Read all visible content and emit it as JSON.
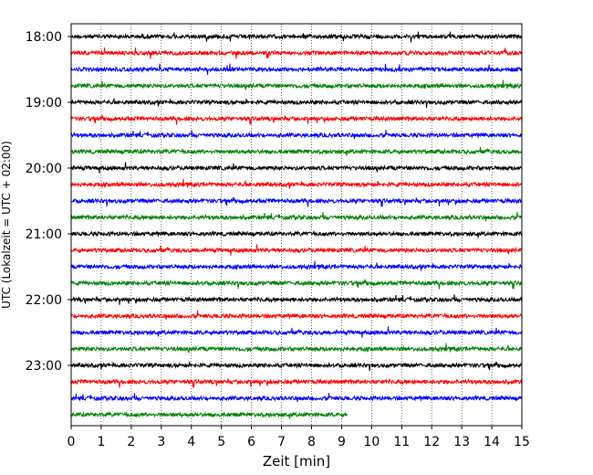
{
  "chart_data": {
    "type": "line",
    "xlabel": "Zeit  [min]",
    "ylabel": "UTC (Lokalzeit = UTC + 02:00)",
    "xlim": [
      0,
      15
    ],
    "x_ticks": [
      "0",
      "1",
      "2",
      "3",
      "4",
      "5",
      "6",
      "7",
      "8",
      "9",
      "10",
      "11",
      "12",
      "13",
      "14",
      "15"
    ],
    "y_ticks": [
      "18:00",
      "19:00",
      "20:00",
      "21:00",
      "22:00",
      "23:00"
    ],
    "grid": "vertical dotted",
    "trace_colors": [
      "#000000",
      "#ff0000",
      "#0000ff",
      "#008000"
    ],
    "traces": [
      {
        "start": "18:00",
        "end_min": 15,
        "color": "#000000"
      },
      {
        "start": "18:15",
        "end_min": 15,
        "color": "#ff0000"
      },
      {
        "start": "18:30",
        "end_min": 15,
        "color": "#0000ff"
      },
      {
        "start": "18:45",
        "end_min": 15,
        "color": "#008000"
      },
      {
        "start": "19:00",
        "end_min": 15,
        "color": "#000000"
      },
      {
        "start": "19:15",
        "end_min": 15,
        "color": "#ff0000"
      },
      {
        "start": "19:30",
        "end_min": 15,
        "color": "#0000ff"
      },
      {
        "start": "19:45",
        "end_min": 15,
        "color": "#008000"
      },
      {
        "start": "20:00",
        "end_min": 15,
        "color": "#000000"
      },
      {
        "start": "20:15",
        "end_min": 15,
        "color": "#ff0000"
      },
      {
        "start": "20:30",
        "end_min": 15,
        "color": "#0000ff"
      },
      {
        "start": "20:45",
        "end_min": 15,
        "color": "#008000"
      },
      {
        "start": "21:00",
        "end_min": 15,
        "color": "#000000"
      },
      {
        "start": "21:15",
        "end_min": 15,
        "color": "#ff0000"
      },
      {
        "start": "21:30",
        "end_min": 15,
        "color": "#0000ff"
      },
      {
        "start": "21:45",
        "end_min": 15,
        "color": "#008000"
      },
      {
        "start": "22:00",
        "end_min": 15,
        "color": "#000000"
      },
      {
        "start": "22:15",
        "end_min": 15,
        "color": "#ff0000"
      },
      {
        "start": "22:30",
        "end_min": 15,
        "color": "#0000ff"
      },
      {
        "start": "22:45",
        "end_min": 15,
        "color": "#008000"
      },
      {
        "start": "23:00",
        "end_min": 15,
        "color": "#000000"
      },
      {
        "start": "23:15",
        "end_min": 15,
        "color": "#ff0000"
      },
      {
        "start": "23:30",
        "end_min": 15,
        "color": "#0000ff"
      },
      {
        "start": "23:45",
        "end_min": 9.2,
        "color": "#008000"
      }
    ]
  }
}
